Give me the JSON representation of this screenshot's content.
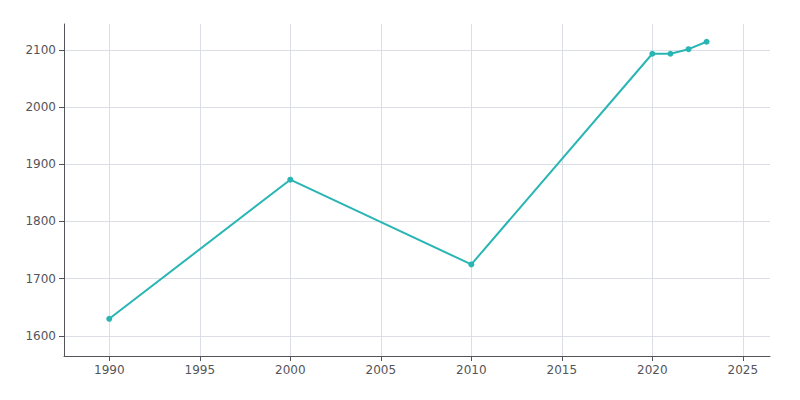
{
  "chart_data": {
    "type": "line",
    "x": [
      1990,
      2000,
      2010,
      2020,
      2021,
      2022,
      2023
    ],
    "values": [
      1630,
      1873,
      1725,
      2093,
      2093,
      2101,
      2114
    ],
    "color": "#2ab5b5",
    "marker": "circle",
    "xlim": [
      1987.5,
      2026.5
    ],
    "xticks": [
      1990,
      1995,
      2000,
      2005,
      2010,
      2015,
      2020,
      2025
    ],
    "ylim": [
      1565,
      2145
    ],
    "yticks": [
      1600,
      1700,
      1800,
      1900,
      2000,
      2100
    ],
    "grid": true
  }
}
